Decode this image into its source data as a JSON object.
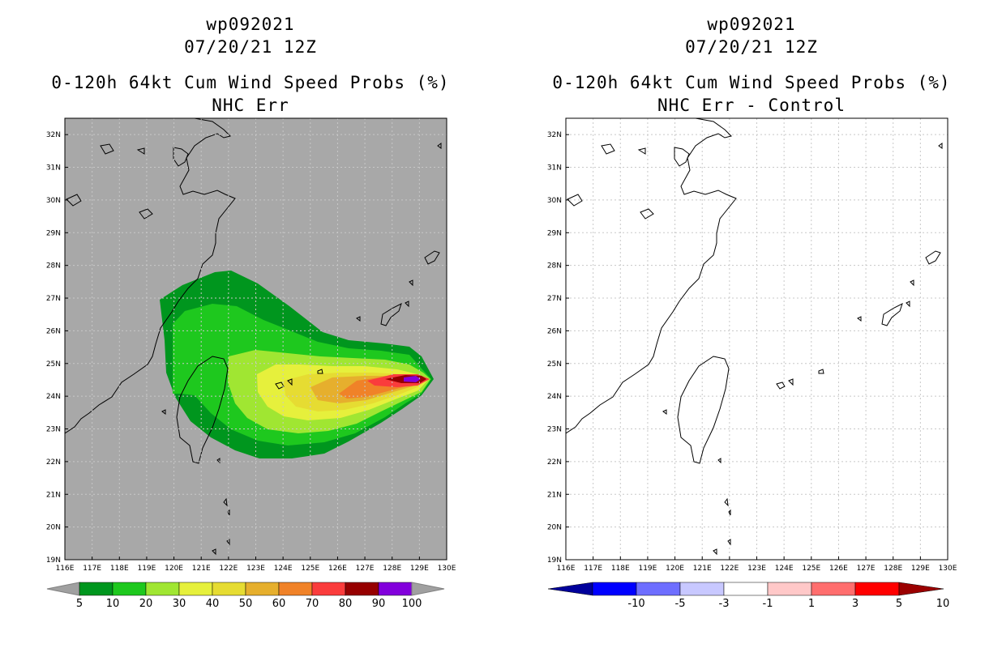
{
  "left_panel": {
    "storm_id": "wp092021",
    "datetime": "07/20/21 12Z",
    "product": "0-120h 64kt Cum Wind Speed Probs (%)",
    "subtitle": "NHC Err",
    "colorbar": {
      "labels": [
        "5",
        "10",
        "20",
        "30",
        "40",
        "50",
        "60",
        "70",
        "80",
        "90",
        "100"
      ],
      "colors": [
        "#00961e",
        "#1ec81e",
        "#a0e632",
        "#e6f03c",
        "#e6dc32",
        "#e6af2d",
        "#f08228",
        "#fa3c3c",
        "#960000",
        "#8200dc",
        "#a0a0a0"
      ]
    }
  },
  "right_panel": {
    "storm_id": "wp092021",
    "datetime": "07/20/21 12Z",
    "product": "0-120h 64kt Cum Wind Speed Probs (%)",
    "subtitle": "NHC Err - Control",
    "colorbar": {
      "labels": [
        "-10",
        "-5",
        "-3",
        "-1",
        "1",
        "3",
        "5",
        "10"
      ],
      "colors": [
        "#00009b",
        "#0000ff",
        "#6e6eff",
        "#c8c8ff",
        "#ffffff",
        "#ffc8c8",
        "#ff6e6e",
        "#ff0000",
        "#9b0000"
      ]
    }
  },
  "axes": {
    "lon_labels": [
      "116E",
      "117E",
      "118E",
      "119E",
      "120E",
      "121E",
      "122E",
      "123E",
      "124E",
      "125E",
      "126E",
      "127E",
      "128E",
      "129E",
      "130E"
    ],
    "lat_labels": [
      "19N",
      "20N",
      "21N",
      "22N",
      "23N",
      "24N",
      "25N",
      "26N",
      "27N",
      "28N",
      "29N",
      "30N",
      "31N",
      "32N"
    ],
    "lon_range": [
      116,
      130
    ],
    "lat_range": [
      19,
      32.5
    ]
  },
  "map_data": {
    "type": "probability_contour_map",
    "storm_max_probability_location": {
      "lon": 128.9,
      "lat": 24.5
    },
    "colors": {
      "land_background": "#a8a8a8",
      "coastline": "#000000",
      "grid": "#c8c8c8"
    }
  }
}
